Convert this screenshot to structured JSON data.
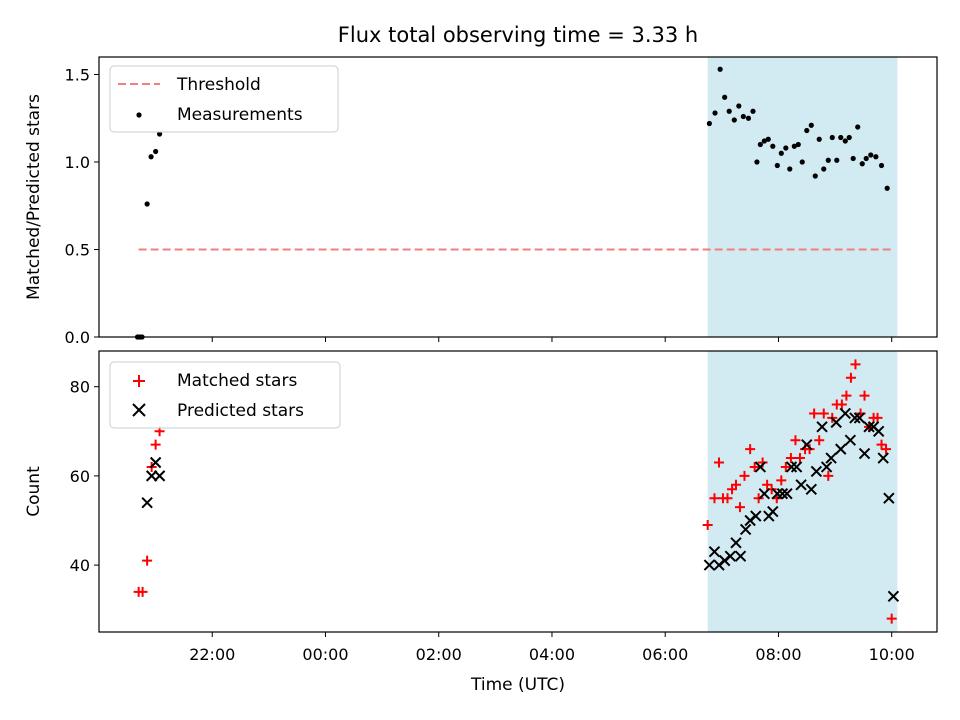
{
  "figure": {
    "title": "Flux total observing time = 3.33 h",
    "xlabel": "Time (UTC)"
  },
  "colors": {
    "shade": "#add8e6",
    "threshold": "#f08080",
    "matched": "#ff0000",
    "predicted": "#000000",
    "measurement": "#000000"
  },
  "chart_data": [
    {
      "type": "scatter",
      "ylabel": "Matched/Predicted stars",
      "ylim": [
        0.0,
        1.6
      ],
      "yticks": [
        0.0,
        0.5,
        1.0,
        1.5
      ],
      "ytick_labels": [
        "0.0",
        "0.5",
        "1.0",
        "1.5"
      ],
      "xlim_hours": [
        20.0,
        34.8
      ],
      "shaded_span_hours": [
        30.75,
        34.1
      ],
      "legend": {
        "location": "upper-left",
        "entries": [
          "Threshold",
          "Measurements"
        ]
      },
      "series": [
        {
          "name": "Threshold",
          "style": "dashed-line",
          "x_hours": [
            20.7,
            34.0
          ],
          "y": [
            0.5,
            0.5
          ]
        },
        {
          "name": "Measurements",
          "style": "dot",
          "points": [
            [
              20.68,
              0.0
            ],
            [
              20.72,
              0.0
            ],
            [
              20.76,
              0.0
            ],
            [
              20.85,
              0.76
            ],
            [
              20.92,
              1.03
            ],
            [
              21.0,
              1.06
            ],
            [
              21.07,
              1.16
            ],
            [
              30.78,
              1.22
            ],
            [
              30.88,
              1.28
            ],
            [
              30.97,
              1.53
            ],
            [
              31.05,
              1.37
            ],
            [
              31.13,
              1.29
            ],
            [
              31.22,
              1.24
            ],
            [
              31.3,
              1.32
            ],
            [
              31.38,
              1.26
            ],
            [
              31.47,
              1.25
            ],
            [
              31.55,
              1.29
            ],
            [
              31.62,
              1.0
            ],
            [
              31.68,
              1.1
            ],
            [
              31.75,
              1.12
            ],
            [
              31.82,
              1.13
            ],
            [
              31.9,
              1.09
            ],
            [
              31.98,
              0.98
            ],
            [
              32.05,
              1.05
            ],
            [
              32.13,
              1.08
            ],
            [
              32.2,
              0.96
            ],
            [
              32.28,
              1.09
            ],
            [
              32.35,
              1.1
            ],
            [
              32.42,
              1.0
            ],
            [
              32.5,
              1.18
            ],
            [
              32.58,
              1.21
            ],
            [
              32.65,
              0.92
            ],
            [
              32.72,
              1.13
            ],
            [
              32.8,
              0.96
            ],
            [
              32.88,
              1.01
            ],
            [
              32.95,
              1.14
            ],
            [
              33.03,
              1.01
            ],
            [
              33.1,
              1.14
            ],
            [
              33.18,
              1.12
            ],
            [
              33.25,
              1.14
            ],
            [
              33.32,
              1.02
            ],
            [
              33.4,
              1.2
            ],
            [
              33.48,
              0.99
            ],
            [
              33.55,
              1.02
            ],
            [
              33.63,
              1.04
            ],
            [
              33.72,
              1.03
            ],
            [
              33.82,
              0.98
            ],
            [
              33.92,
              0.85
            ]
          ]
        }
      ]
    },
    {
      "type": "scatter",
      "ylabel": "Count",
      "ylim": [
        25,
        88
      ],
      "yticks": [
        40,
        60,
        80
      ],
      "ytick_labels": [
        "40",
        "60",
        "80"
      ],
      "xlim_hours": [
        20.0,
        34.8
      ],
      "shaded_span_hours": [
        30.75,
        34.1
      ],
      "xticks_hours": [
        22,
        24,
        26,
        28,
        30,
        32,
        34
      ],
      "xtick_labels": [
        "22:00",
        "00:00",
        "02:00",
        "04:00",
        "06:00",
        "08:00",
        "10:00"
      ],
      "legend": {
        "location": "upper-left",
        "entries": [
          "Matched stars",
          "Predicted stars"
        ]
      },
      "series": [
        {
          "name": "Matched stars",
          "style": "plus",
          "points": [
            [
              20.7,
              34
            ],
            [
              20.77,
              34
            ],
            [
              20.85,
              41
            ],
            [
              20.93,
              62
            ],
            [
              21.0,
              67
            ],
            [
              21.07,
              70
            ],
            [
              30.75,
              49
            ],
            [
              30.87,
              55
            ],
            [
              30.95,
              63
            ],
            [
              31.02,
              55
            ],
            [
              31.1,
              55
            ],
            [
              31.18,
              57
            ],
            [
              31.25,
              58
            ],
            [
              31.32,
              53
            ],
            [
              31.4,
              60
            ],
            [
              31.5,
              66
            ],
            [
              31.58,
              62
            ],
            [
              31.65,
              55
            ],
            [
              31.72,
              63
            ],
            [
              31.8,
              58
            ],
            [
              31.88,
              57
            ],
            [
              31.97,
              55
            ],
            [
              32.05,
              59
            ],
            [
              32.13,
              62
            ],
            [
              32.22,
              64
            ],
            [
              32.3,
              68
            ],
            [
              32.38,
              64
            ],
            [
              32.47,
              66
            ],
            [
              32.55,
              66
            ],
            [
              32.63,
              74
            ],
            [
              32.72,
              68
            ],
            [
              32.8,
              74
            ],
            [
              32.88,
              60
            ],
            [
              32.95,
              73
            ],
            [
              33.03,
              76
            ],
            [
              33.12,
              76
            ],
            [
              33.2,
              78
            ],
            [
              33.28,
              82
            ],
            [
              33.36,
              85
            ],
            [
              33.45,
              74
            ],
            [
              33.52,
              78
            ],
            [
              33.6,
              71
            ],
            [
              33.68,
              73
            ],
            [
              33.75,
              73
            ],
            [
              33.82,
              67
            ],
            [
              33.9,
              66
            ],
            [
              34.0,
              28
            ]
          ]
        },
        {
          "name": "Predicted stars",
          "style": "x",
          "points": [
            [
              20.85,
              54
            ],
            [
              20.93,
              60
            ],
            [
              21.0,
              63
            ],
            [
              21.07,
              60
            ],
            [
              30.78,
              40
            ],
            [
              30.87,
              43
            ],
            [
              30.95,
              40
            ],
            [
              31.05,
              41
            ],
            [
              31.15,
              42
            ],
            [
              31.25,
              45
            ],
            [
              31.33,
              42
            ],
            [
              31.42,
              48
            ],
            [
              31.5,
              50
            ],
            [
              31.6,
              51
            ],
            [
              31.68,
              62
            ],
            [
              31.75,
              56
            ],
            [
              31.83,
              51
            ],
            [
              31.9,
              52
            ],
            [
              31.98,
              56
            ],
            [
              32.07,
              56
            ],
            [
              32.15,
              56
            ],
            [
              32.23,
              62
            ],
            [
              32.32,
              62
            ],
            [
              32.4,
              58
            ],
            [
              32.5,
              67
            ],
            [
              32.58,
              57
            ],
            [
              32.67,
              61
            ],
            [
              32.77,
              71
            ],
            [
              32.85,
              62
            ],
            [
              32.93,
              64
            ],
            [
              33.02,
              72
            ],
            [
              33.1,
              66
            ],
            [
              33.18,
              74
            ],
            [
              33.27,
              68
            ],
            [
              33.35,
              73
            ],
            [
              33.43,
              73
            ],
            [
              33.52,
              65
            ],
            [
              33.6,
              71
            ],
            [
              33.68,
              71
            ],
            [
              33.77,
              70
            ],
            [
              33.85,
              64
            ],
            [
              33.95,
              55
            ],
            [
              34.03,
              33
            ]
          ]
        }
      ]
    }
  ]
}
